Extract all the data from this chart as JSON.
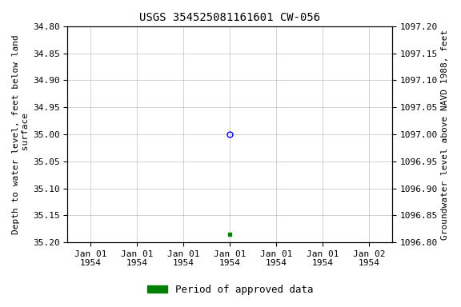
{
  "title": "USGS 354525081161601 CW-056",
  "ylabel_left": "Depth to water level, feet below land\n surface",
  "ylabel_right": "Groundwater level above NAVD 1988, feet",
  "ylim_left": [
    34.8,
    35.2
  ],
  "ylim_right": [
    1096.8,
    1097.2
  ],
  "yticks_left": [
    34.8,
    34.85,
    34.9,
    34.95,
    35.0,
    35.05,
    35.1,
    35.15,
    35.2
  ],
  "yticks_right": [
    1096.8,
    1096.85,
    1096.9,
    1096.95,
    1097.0,
    1097.05,
    1097.1,
    1097.15,
    1097.2
  ],
  "data_point_blue": {
    "date": "1954-01-01",
    "value": 35.0
  },
  "data_point_green": {
    "date": "1954-01-01",
    "value": 35.185
  },
  "legend_label": "Period of approved data",
  "legend_color": "#008000",
  "background_color": "#ffffff",
  "grid_color": "#c0c0c0",
  "title_fontsize": 10,
  "axis_fontsize": 8,
  "tick_fontsize": 8,
  "xtick_labels": [
    "Jan 01\n1954",
    "Jan 01\n1954",
    "Jan 01\n1954",
    "Jan 01\n1954",
    "Jan 01\n1954",
    "Jan 01\n1954",
    "Jan 02\n1954"
  ],
  "xtick_positions": [
    0,
    1,
    2,
    3,
    4,
    5,
    6
  ],
  "data_blue_x": 3,
  "data_green_x": 3
}
